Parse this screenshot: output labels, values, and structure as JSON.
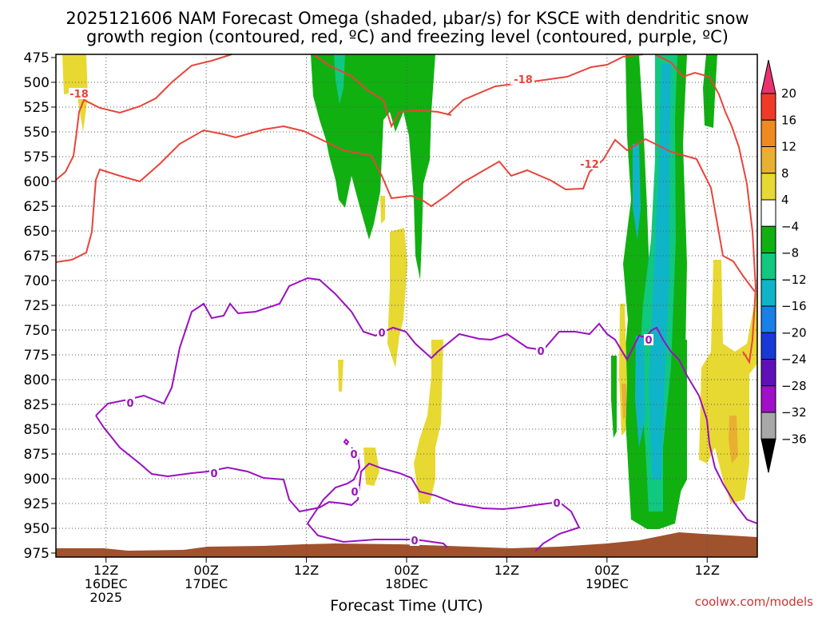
{
  "chart_data": {
    "type": "heatmap",
    "title_line1": "2025121606 NAM Forecast Omega (shaded, µbar/s) for KSCE with dendritic snow",
    "title_line2": "growth region (contoured, red, ºC) and freezing level (contoured, purple, ºC)",
    "xlabel": "Forecast Time (UTC)",
    "ylabel": "",
    "credit": "coolwx.com/models",
    "y_ticks": [
      "475",
      "500",
      "525",
      "550",
      "575",
      "600",
      "625",
      "650",
      "675",
      "700",
      "725",
      "750",
      "775",
      "800",
      "825",
      "850",
      "875",
      "900",
      "925",
      "950",
      "975"
    ],
    "y_range_mb": [
      975,
      475
    ],
    "x_range_hours": [
      0,
      84
    ],
    "x_ticks": [
      {
        "hour": 6,
        "label": "12Z",
        "label2": "16DEC",
        "label3": "2025"
      },
      {
        "hour": 18,
        "label": "00Z",
        "label2": "17DEC",
        "label3": ""
      },
      {
        "hour": 30,
        "label": "12Z",
        "label2": "",
        "label3": ""
      },
      {
        "hour": 42,
        "label": "00Z",
        "label2": "18DEC",
        "label3": ""
      },
      {
        "hour": 54,
        "label": "12Z",
        "label2": "",
        "label3": ""
      },
      {
        "hour": 66,
        "label": "00Z",
        "label2": "19DEC",
        "label3": ""
      },
      {
        "hour": 78,
        "label": "12Z",
        "label2": "",
        "label3": ""
      }
    ],
    "colorbar": {
      "labels": [
        "20",
        "16",
        "12",
        "8",
        "4",
        "−4",
        "−8",
        "−12",
        "−16",
        "−20",
        "−24",
        "−28",
        "−32",
        "−36"
      ],
      "colors": [
        "#e8336e",
        "#f03a28",
        "#f08a20",
        "#e8b030",
        "#e8d832",
        "#ffffff",
        "#10b010",
        "#10c880",
        "#10b4c8",
        "#1880e8",
        "#1838d8",
        "#6010b8",
        "#a010c8",
        "#a8a8a8",
        "#000000"
      ]
    },
    "contour_labels": {
      "dgz_red": [
        "-18",
        "-18",
        "-12"
      ],
      "freezing_purple": [
        "0",
        "0",
        "0",
        "0",
        "0",
        "0",
        "0",
        "0",
        "0"
      ]
    },
    "colors": {
      "ground": "#a0522d",
      "dgz_contour": "#e8443a",
      "freezing_contour": "#9a10c0"
    }
  }
}
